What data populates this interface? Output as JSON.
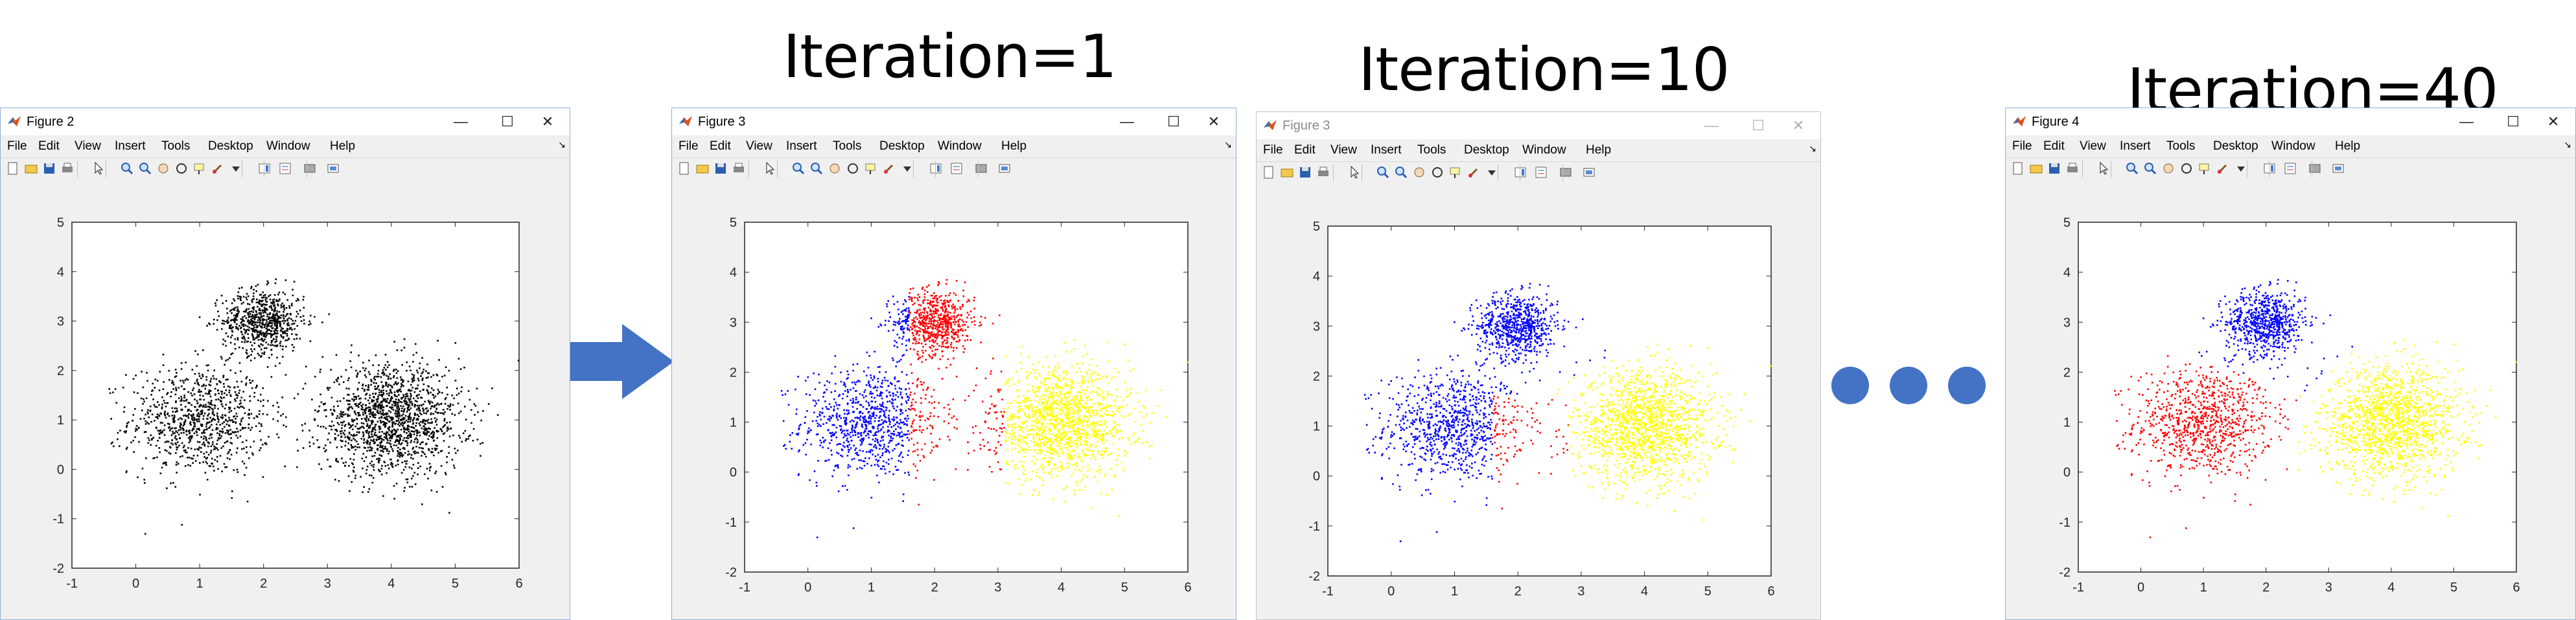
{
  "headings": [
    "Iteration=1",
    "Iteration=10",
    "Iteration=40"
  ],
  "menu": [
    "File",
    "Edit",
    "View",
    "Insert",
    "Tools",
    "Desktop",
    "Window",
    "Help"
  ],
  "window_controls": {
    "minimize": "—",
    "maximize": "☐",
    "close": "✕"
  },
  "colors": {
    "arrow": "#4472c4",
    "dots": "#4472c4",
    "black": "#000000",
    "red": "#ff0000",
    "blue": "#0000ff",
    "yellow": "#ffff00"
  },
  "figures": [
    {
      "title": "Figure 2",
      "dimmed": false
    },
    {
      "title": "Figure 3",
      "dimmed": false
    },
    {
      "title": "Figure 3",
      "dimmed": true
    },
    {
      "title": "Figure 4",
      "dimmed": false
    }
  ],
  "toolbar_icons": [
    "new-figure-icon",
    "open-file-icon",
    "save-icon",
    "print-icon",
    "edit-plot-icon",
    "zoom-in-icon",
    "zoom-out-icon",
    "pan-icon",
    "rotate-3d-icon",
    "data-cursor-icon",
    "brush-icon",
    "link-plot-icon",
    "insert-colorbar-icon",
    "insert-legend-icon",
    "hide-plot-tools-icon",
    "show-plot-tools-icon"
  ],
  "chart_data": [
    {
      "type": "scatter",
      "figure": "Figure 2",
      "title": "",
      "xlim": [
        -1,
        6
      ],
      "ylim": [
        -2,
        5
      ],
      "xticks": [
        "-1",
        "0",
        "1",
        "2",
        "3",
        "4",
        "5",
        "6"
      ],
      "yticks": [
        "-2",
        "-1",
        "0",
        "1",
        "2",
        "3",
        "4",
        "5"
      ],
      "clusters": [
        {
          "center": [
            1.0,
            1.0
          ],
          "spread": 0.55,
          "count": 900
        },
        {
          "center": [
            2.0,
            3.0
          ],
          "spread": 0.32,
          "count": 700
        },
        {
          "center": [
            4.0,
            1.0
          ],
          "spread": 0.55,
          "count": 1500
        }
      ],
      "coloring": {
        "mode": "single",
        "color": "#000000"
      }
    },
    {
      "type": "scatter",
      "figure": "Figure 3",
      "heading": "Iteration=1",
      "title": "",
      "xlim": [
        -1,
        6
      ],
      "ylim": [
        -2,
        5
      ],
      "xticks": [
        "-1",
        "0",
        "1",
        "2",
        "3",
        "4",
        "5",
        "6"
      ],
      "yticks": [
        "-2",
        "-1",
        "0",
        "1",
        "2",
        "3",
        "4",
        "5"
      ],
      "clusters": [
        {
          "center": [
            1.0,
            1.0
          ],
          "spread": 0.55,
          "count": 900
        },
        {
          "center": [
            2.0,
            3.0
          ],
          "spread": 0.32,
          "count": 700
        },
        {
          "center": [
            4.0,
            1.0
          ],
          "spread": 0.55,
          "count": 1500
        }
      ],
      "coloring": {
        "mode": "threshold",
        "boundaries": [
          1.6,
          3.1
        ],
        "colors": [
          "#0000ff",
          "#ff0000",
          "#ffff00"
        ]
      }
    },
    {
      "type": "scatter",
      "figure": "Figure 3",
      "heading": "Iteration=10",
      "title": "",
      "xlim": [
        -1,
        6
      ],
      "ylim": [
        -2,
        5
      ],
      "xticks": [
        "-1",
        "0",
        "1",
        "2",
        "3",
        "4",
        "5",
        "6"
      ],
      "yticks": [
        "-2",
        "-1",
        "0",
        "1",
        "2",
        "3",
        "4",
        "5"
      ],
      "clusters": [
        {
          "center": [
            1.0,
            1.0
          ],
          "spread": 0.55,
          "count": 900
        },
        {
          "center": [
            2.0,
            3.0
          ],
          "spread": 0.32,
          "count": 700
        },
        {
          "center": [
            4.0,
            1.0
          ],
          "spread": 0.55,
          "count": 1500
        }
      ],
      "coloring": {
        "mode": "nearest",
        "centroids": [
          [
            2.2,
            3.3
          ],
          [
            0.8,
            0.9
          ],
          [
            4.0,
            1.0
          ]
        ],
        "colors": [
          "#0000ff",
          "#0000ff",
          "#ffff00"
        ],
        "red_zone": {
          "x_min": 1.6,
          "y_max": 1.6
        }
      }
    },
    {
      "type": "scatter",
      "figure": "Figure 4",
      "heading": "Iteration=40",
      "title": "",
      "xlim": [
        -1,
        6
      ],
      "ylim": [
        -2,
        5
      ],
      "xticks": [
        "-1",
        "0",
        "1",
        "2",
        "3",
        "4",
        "5",
        "6"
      ],
      "yticks": [
        "-2",
        "-1",
        "0",
        "1",
        "2",
        "3",
        "4",
        "5"
      ],
      "clusters": [
        {
          "center": [
            1.0,
            1.0
          ],
          "spread": 0.55,
          "count": 900
        },
        {
          "center": [
            2.0,
            3.0
          ],
          "spread": 0.32,
          "count": 700
        },
        {
          "center": [
            4.0,
            1.0
          ],
          "spread": 0.55,
          "count": 1500
        }
      ],
      "coloring": {
        "mode": "nearest",
        "centroids": [
          [
            1.0,
            1.0
          ],
          [
            2.0,
            3.0
          ],
          [
            4.0,
            1.0
          ]
        ],
        "colors": [
          "#ff0000",
          "#0000ff",
          "#ffff00"
        ]
      }
    }
  ]
}
